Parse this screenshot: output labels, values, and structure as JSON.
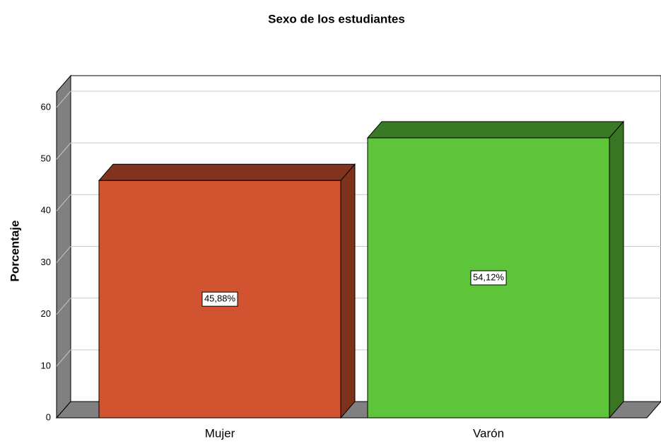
{
  "chart_data": {
    "type": "bar3d",
    "title": "Sexo de los estudiantes",
    "ylabel": "Porcentaje",
    "categories": [
      "Mujer",
      "Varón"
    ],
    "values": [
      45.88,
      54.12
    ],
    "value_labels": [
      "45,88%",
      "54,12%"
    ],
    "colors": [
      "#d2532f",
      "#5ec43a"
    ],
    "ylim": [
      0,
      63
    ],
    "yticks": [
      0,
      10,
      20,
      30,
      40,
      50,
      60
    ],
    "grid": true
  }
}
